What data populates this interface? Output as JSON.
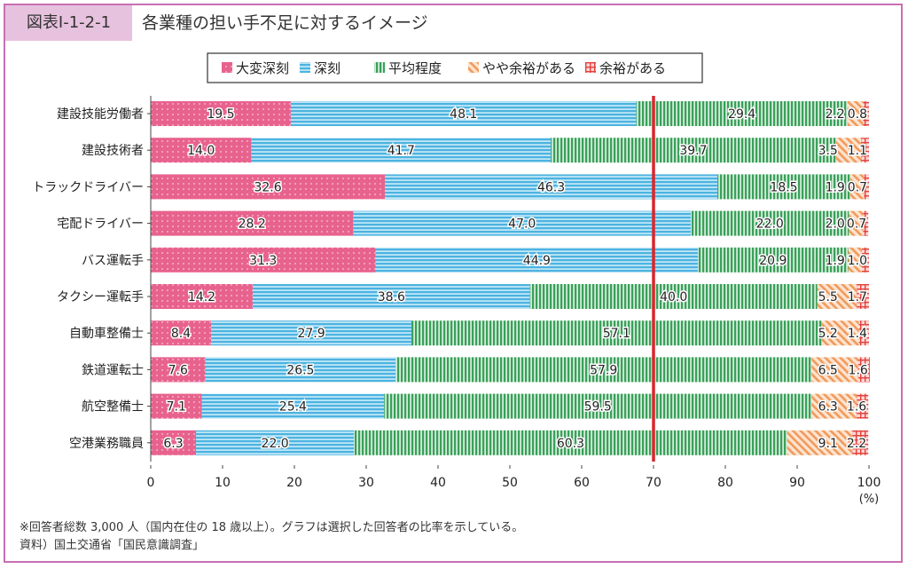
{
  "header": {
    "figure_label": "図表Ⅰ-1-2-1",
    "title": "各業種の担い手不足に対するイメージ"
  },
  "footnotes": {
    "note": "※回答者総数 3,000 人（国内在住の 18 歳以上）。グラフは選択した回答者の比率を示している。",
    "source": "資料）国土交通省「国民意識調査」"
  },
  "chart_data": {
    "type": "bar",
    "orientation": "horizontal",
    "stacked": true,
    "xlim": [
      0,
      100
    ],
    "xticks": [
      "0",
      "10",
      "20",
      "30",
      "40",
      "50",
      "60",
      "70",
      "80",
      "90",
      "100"
    ],
    "x_unit": "(%)",
    "reference_line": 70,
    "legend_position": "top",
    "categories": [
      "建設技能労働者",
      "建設技術者",
      "トラックドライバー",
      "宅配ドライバー",
      "バス運転手",
      "タクシー運転手",
      "自動車整備士",
      "鉄道運転士",
      "航空整備士",
      "空港業務職員"
    ],
    "series": [
      {
        "name": "大変深刻",
        "color": "#e8628e",
        "values": [
          19.5,
          14.0,
          32.6,
          28.2,
          31.3,
          14.2,
          8.4,
          7.6,
          7.1,
          6.3
        ],
        "labels": [
          "19.5",
          "14.0",
          "32.6",
          "28.2",
          "31.3",
          "14.2",
          "8.4",
          "7.6",
          "7.1",
          "6.3"
        ]
      },
      {
        "name": "深刻",
        "color": "#4cb3e0",
        "values": [
          48.1,
          41.7,
          46.3,
          47.0,
          44.9,
          38.6,
          27.9,
          26.5,
          25.4,
          22.0
        ],
        "labels": [
          "48.1",
          "41.7",
          "46.3",
          "47.0",
          "44.9",
          "38.6",
          "27.9",
          "26.5",
          "25.4",
          "22.0"
        ]
      },
      {
        "name": "平均程度",
        "color": "#3aa05a",
        "values": [
          29.4,
          39.7,
          18.5,
          22.0,
          20.9,
          40.0,
          57.1,
          57.9,
          59.5,
          60.3
        ],
        "labels": [
          "29.4",
          "39.7",
          "18.5",
          "22.0",
          "20.9",
          "40.0",
          "57.1",
          "57.9",
          "59.5",
          "60.3"
        ]
      },
      {
        "name": "やや余裕がある",
        "color": "#f09a5c",
        "values": [
          2.2,
          3.5,
          1.9,
          2.0,
          1.9,
          5.5,
          5.2,
          6.5,
          6.3,
          9.1
        ],
        "labels": [
          "2.2",
          "3.5",
          "1.9",
          "2.0",
          "1.9",
          "5.5",
          "5.2",
          "6.5",
          "6.3",
          "9.1"
        ]
      },
      {
        "name": "余裕がある",
        "color": "#e2413a",
        "values": [
          0.8,
          1.1,
          0.7,
          0.7,
          1.0,
          1.7,
          1.4,
          1.6,
          1.6,
          2.2
        ],
        "labels": [
          "0.8",
          "1.1",
          "0.7",
          "0.7",
          "1.0",
          "1.7",
          "1.4",
          "1.6",
          "1.6",
          "2.2"
        ]
      }
    ]
  }
}
